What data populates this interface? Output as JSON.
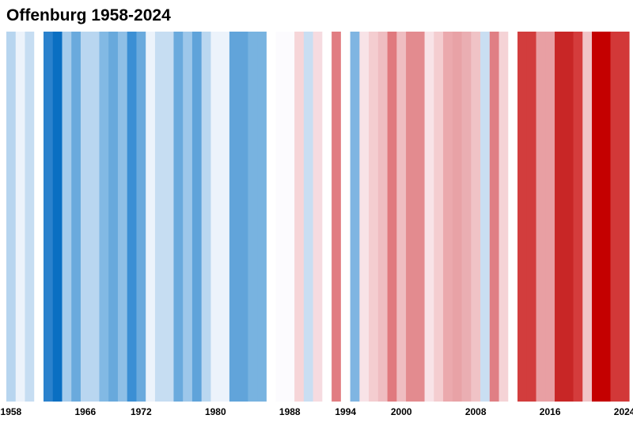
{
  "chart_data": {
    "type": "heatmap",
    "title": "Offenburg 1958-2024",
    "xlabel": "",
    "ylabel": "",
    "x_range": [
      1958,
      2024
    ],
    "tick_labels": [
      "1958",
      "1966",
      "1972",
      "1980",
      "1988",
      "1994",
      "2000",
      "2008",
      "2016",
      "2024"
    ],
    "legend": "none",
    "grid": false,
    "palette": {
      "dark_blue": "#0a6fc2",
      "light_blue": "#cfe2f3",
      "neutral": "#fbf9fd",
      "light_red": "#f5d3d6",
      "dark_red": "#c40000"
    },
    "stripes": [
      {
        "year": 1958,
        "color": "#b7d5ef"
      },
      {
        "year": 1959,
        "color": "#ecf3fb"
      },
      {
        "year": 1960,
        "color": "#c6ddf2"
      },
      {
        "year": 1961,
        "color": "#ffffff"
      },
      {
        "year": 1962,
        "color": "#2b82cd"
      },
      {
        "year": 1963,
        "color": "#0a6fc2"
      },
      {
        "year": 1964,
        "color": "#a6ccec"
      },
      {
        "year": 1965,
        "color": "#6aaadd"
      },
      {
        "year": 1966,
        "color": "#b9d6f0"
      },
      {
        "year": 1967,
        "color": "#b9d6f0"
      },
      {
        "year": 1968,
        "color": "#82b9e4"
      },
      {
        "year": 1969,
        "color": "#68a9dc"
      },
      {
        "year": 1970,
        "color": "#8ebfe6"
      },
      {
        "year": 1971,
        "color": "#3b8fd4"
      },
      {
        "year": 1972,
        "color": "#6aaadd"
      },
      {
        "year": 1973,
        "color": "#ecf3fb"
      },
      {
        "year": 1974,
        "color": "#c6ddf2"
      },
      {
        "year": 1975,
        "color": "#c6ddf2"
      },
      {
        "year": 1976,
        "color": "#6aaadd"
      },
      {
        "year": 1977,
        "color": "#9dc7ea"
      },
      {
        "year": 1978,
        "color": "#5fa3da"
      },
      {
        "year": 1979,
        "color": "#bad7f0"
      },
      {
        "year": 1980,
        "color": "#ecf3fb"
      },
      {
        "year": 1981,
        "color": "#ecf3fb"
      },
      {
        "year": 1982,
        "color": "#61a4da"
      },
      {
        "year": 1983,
        "color": "#61a4da"
      },
      {
        "year": 1984,
        "color": "#78b3e0"
      },
      {
        "year": 1985,
        "color": "#78b3e0"
      },
      {
        "year": 1986,
        "color": "#ffffff"
      },
      {
        "year": 1987,
        "color": "#fcfbfe"
      },
      {
        "year": 1988,
        "color": "#fcfbfe"
      },
      {
        "year": 1989,
        "color": "#f6d5d8"
      },
      {
        "year": 1990,
        "color": "#c9def2"
      },
      {
        "year": 1991,
        "color": "#f6dbe0"
      },
      {
        "year": 1992,
        "color": "#ffffff"
      },
      {
        "year": 1993,
        "color": "#e17d82"
      },
      {
        "year": 1994,
        "color": "#ffffff"
      },
      {
        "year": 1995,
        "color": "#7fb5e2"
      },
      {
        "year": 1996,
        "color": "#f8e3e7"
      },
      {
        "year": 1997,
        "color": "#f4cdd0"
      },
      {
        "year": 1998,
        "color": "#efbdc1"
      },
      {
        "year": 1999,
        "color": "#e0797e"
      },
      {
        "year": 2000,
        "color": "#efbdc1"
      },
      {
        "year": 2001,
        "color": "#e38b8f"
      },
      {
        "year": 2002,
        "color": "#e38b8f"
      },
      {
        "year": 2003,
        "color": "#f8e3e7"
      },
      {
        "year": 2004,
        "color": "#f4cdd0"
      },
      {
        "year": 2005,
        "color": "#eba9ad"
      },
      {
        "year": 2006,
        "color": "#e8a2a6"
      },
      {
        "year": 2007,
        "color": "#eaaeb2"
      },
      {
        "year": 2008,
        "color": "#f0c3c6"
      },
      {
        "year": 2009,
        "color": "#c9def2"
      },
      {
        "year": 2010,
        "color": "#e07f84"
      },
      {
        "year": 2011,
        "color": "#f5d3d6"
      },
      {
        "year": 2012,
        "color": "#ffffff"
      },
      {
        "year": 2013,
        "color": "#d23d3d"
      },
      {
        "year": 2014,
        "color": "#d23d3d"
      },
      {
        "year": 2015,
        "color": "#e89fa3"
      },
      {
        "year": 2016,
        "color": "#e89fa3"
      },
      {
        "year": 2017,
        "color": "#c82626"
      },
      {
        "year": 2018,
        "color": "#c82626"
      },
      {
        "year": 2019,
        "color": "#d43c3c"
      },
      {
        "year": 2020,
        "color": "#f1c4c7"
      },
      {
        "year": 2021,
        "color": "#c40000"
      },
      {
        "year": 2022,
        "color": "#c40000"
      },
      {
        "year": 2023,
        "color": "#d23838"
      },
      {
        "year": 2024,
        "color": "#d23838"
      }
    ]
  }
}
